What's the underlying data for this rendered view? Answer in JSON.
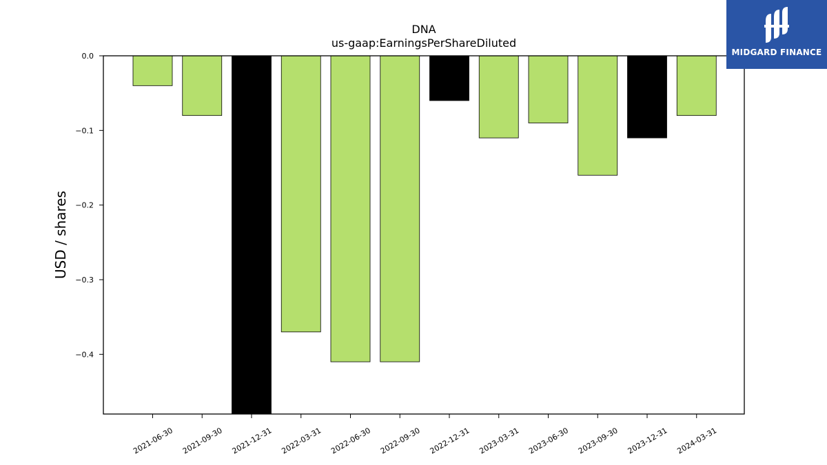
{
  "chart_data": {
    "type": "bar",
    "title": "DNA",
    "subtitle": "us-gaap:EarningsPerShareDiluted",
    "ylabel": "USD / shares",
    "xlabel": "",
    "categories": [
      "2021-06-30",
      "2021-09-30",
      "2021-12-31",
      "2022-03-31",
      "2022-06-30",
      "2022-09-30",
      "2022-12-31",
      "2023-03-31",
      "2023-06-30",
      "2023-09-30",
      "2023-12-31",
      "2024-03-31"
    ],
    "values": [
      -0.04,
      -0.08,
      -0.48,
      -0.37,
      -0.41,
      -0.41,
      -0.06,
      -0.11,
      -0.09,
      -0.16,
      -0.11,
      -0.08
    ],
    "colors": [
      "#b5df6d",
      "#b5df6d",
      "#000000",
      "#b5df6d",
      "#b5df6d",
      "#b5df6d",
      "#000000",
      "#b5df6d",
      "#b5df6d",
      "#b5df6d",
      "#000000",
      "#b5df6d"
    ],
    "ylim": [
      -0.48,
      0.0
    ],
    "yticks": [
      0.0,
      -0.1,
      -0.2,
      -0.3,
      -0.4
    ],
    "ytick_labels": [
      "0.0",
      "−0.1",
      "−0.2",
      "−0.3",
      "−0.4"
    ],
    "grid": false,
    "legend": "none"
  },
  "brand": {
    "name": "MIDGARD FINANCE",
    "color": "#2a55a6"
  }
}
